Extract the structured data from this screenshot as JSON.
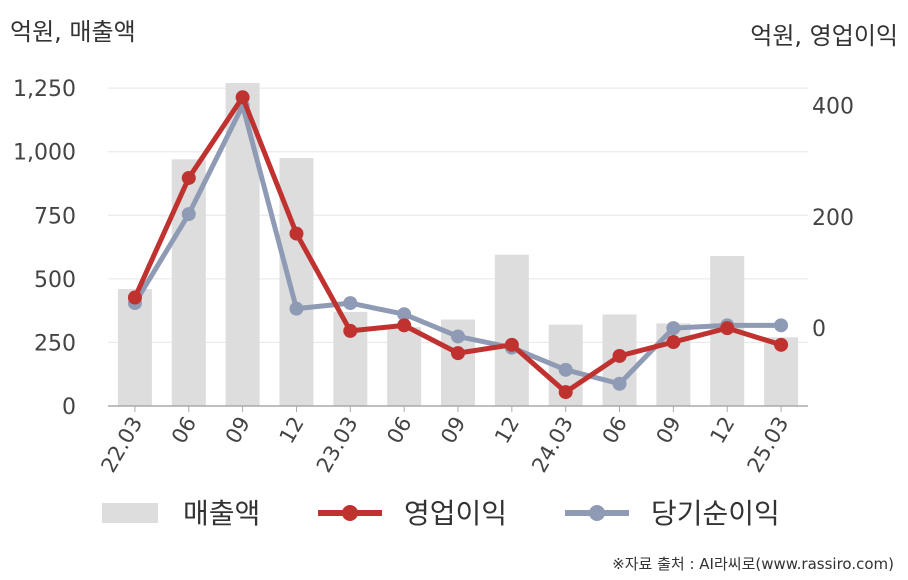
{
  "left_unit_label": "억원, 매출액",
  "right_unit_label": "억원, 영업이익",
  "source": "※자료 출처 : AI라씨로(www.rassiro.com)",
  "colors": {
    "revenue": "#dddddd",
    "operating_income": "#c0322f",
    "net_income": "#8f9bb5",
    "axis": "#aaaaaa",
    "grid": "#e6e6e6",
    "text": "#444444"
  },
  "chart_data": {
    "type": "bar",
    "categories": [
      "22.03",
      "06",
      "09",
      "12",
      "23.03",
      "06",
      "09",
      "12",
      "24.03",
      "06",
      "09",
      "12",
      "25.03"
    ],
    "series": [
      {
        "name": "매출액",
        "type": "bar",
        "axis": "left",
        "values": [
          460,
          970,
          1270,
          975,
          370,
          310,
          340,
          595,
          320,
          360,
          325,
          590,
          270
        ]
      },
      {
        "name": "영업이익",
        "type": "line",
        "axis": "right",
        "values": [
          55,
          270,
          415,
          170,
          -5,
          5,
          -45,
          -30,
          -115,
          -50,
          -25,
          0,
          -30
        ]
      },
      {
        "name": "당기순이익",
        "type": "line",
        "axis": "right",
        "values": [
          45,
          205,
          400,
          35,
          45,
          25,
          -15,
          -35,
          -75,
          -100,
          0,
          5,
          5
        ]
      }
    ],
    "left_axis": {
      "range": [
        0,
        1400
      ],
      "ticks": [
        0,
        250,
        500,
        750,
        1000,
        1250
      ],
      "tick_labels": [
        "0",
        "250",
        "500",
        "750",
        "1,000",
        "1,250"
      ]
    },
    "right_axis": {
      "range": [
        -140,
        500
      ],
      "ticks": [
        0,
        200,
        400
      ],
      "tick_labels": [
        "0",
        "200",
        "400"
      ]
    },
    "grid": true,
    "legend_position": "bottom"
  }
}
